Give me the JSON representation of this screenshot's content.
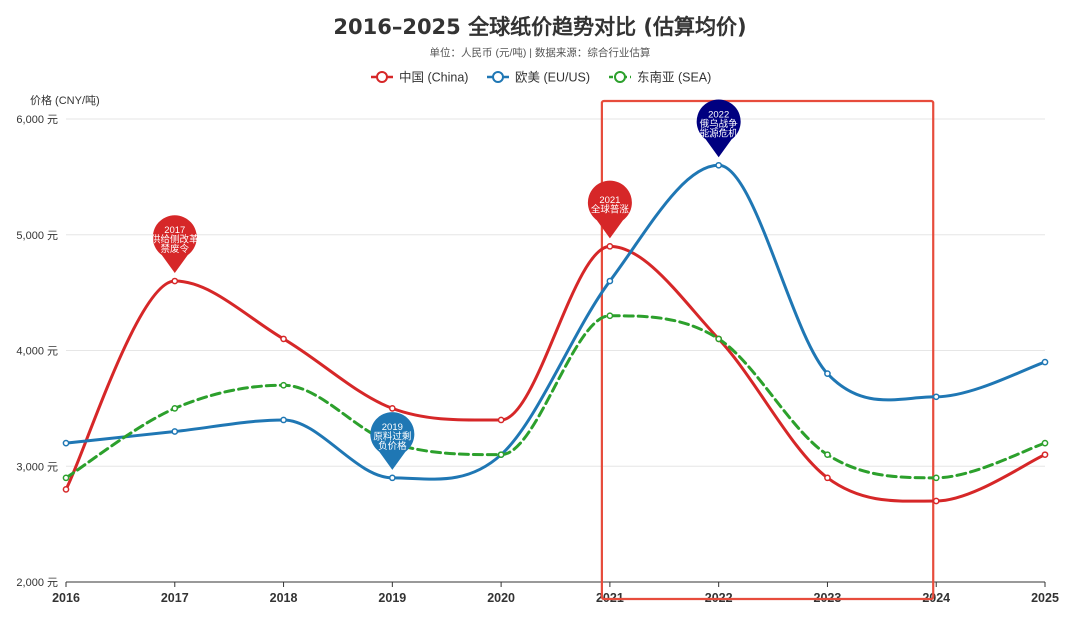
{
  "colors": {
    "china": "#d62728",
    "euus": "#1f77b4",
    "sea": "#2ca02c",
    "grid": "#e6e6e6",
    "axis": "#333333",
    "text": "#333333",
    "subtext": "#555555",
    "highlight_box": "#e74c3c",
    "pin_2022": "#000080"
  },
  "chart_data": {
    "type": "line",
    "title": "2016–2025 全球纸价趋势对比 (估算均价)",
    "subtitle": "单位：人民币 (元/吨) | 数据来源：综合行业估算",
    "ylabel": "价格 (CNY/吨)",
    "xlabel": "",
    "categories": [
      "2016",
      "2017",
      "2018",
      "2019",
      "2020",
      "2021",
      "2022",
      "2023",
      "2024",
      "2025"
    ],
    "ylim": [
      2000,
      6000
    ],
    "yticks": [
      2000,
      3000,
      4000,
      5000,
      6000
    ],
    "ytick_labels": [
      "2,000 元",
      "3,000 元",
      "4,000 元",
      "5,000 元",
      "6,000 元"
    ],
    "grid": true,
    "legend_position": "top",
    "series": [
      {
        "name": "中国 (China)",
        "color_key": "china",
        "dashed": false,
        "values": [
          2800,
          4600,
          4100,
          3500,
          3400,
          4900,
          4100,
          2900,
          2700,
          3100
        ]
      },
      {
        "name": "欧美 (EU/US)",
        "color_key": "euus",
        "dashed": false,
        "values": [
          3200,
          3300,
          3400,
          2900,
          3100,
          4600,
          5600,
          3800,
          3600,
          3900
        ]
      },
      {
        "name": "东南亚 (SEA)",
        "color_key": "sea",
        "dashed": true,
        "values": [
          2900,
          3500,
          3700,
          3200,
          3100,
          4300,
          4100,
          3100,
          2900,
          3200
        ]
      }
    ],
    "annotations": [
      {
        "series": 0,
        "index": 1,
        "color_key": "china",
        "lines": [
          "2017",
          "供给侧改革",
          "禁废令"
        ]
      },
      {
        "series": 1,
        "index": 3,
        "color_key": "euus",
        "lines": [
          "2019",
          "原料过剩",
          "负价格"
        ]
      },
      {
        "series": 0,
        "index": 5,
        "color_key": "china",
        "lines": [
          "2021",
          "全球普涨"
        ]
      },
      {
        "series": 1,
        "index": 6,
        "color_key": "pin_2022",
        "lines": [
          "2022",
          "俄乌战争",
          "能源危机"
        ]
      }
    ],
    "highlight_range": [
      "2021",
      "2024"
    ]
  }
}
